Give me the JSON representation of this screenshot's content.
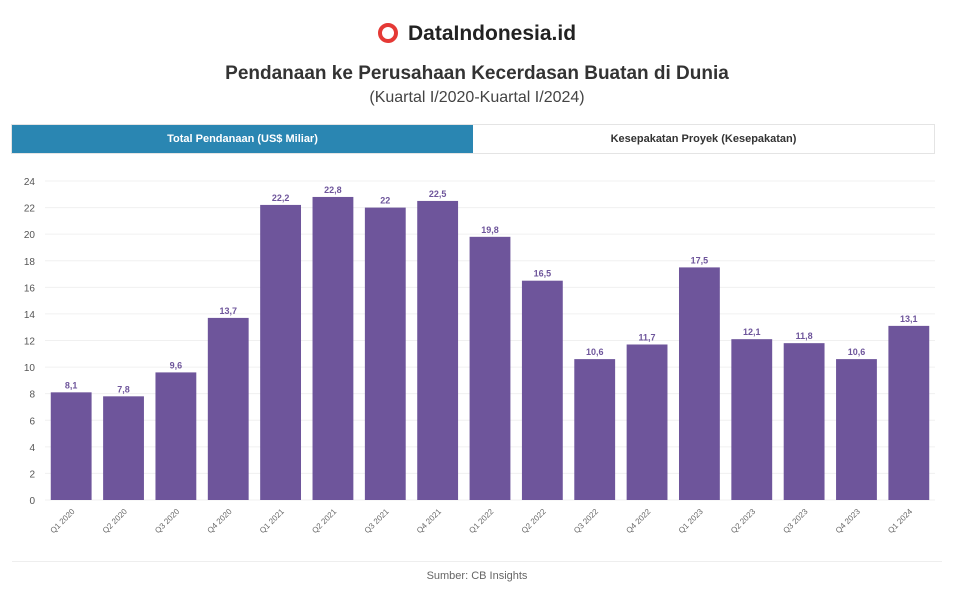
{
  "brand": "DataIndonesia.id",
  "title": "Pendanaan ke Perusahaan Kecerdasan Buatan di Dunia",
  "subtitle": "(Kuartal I/2020-Kuartal I/2024)",
  "tabs": [
    "Total Pendanaan (US$ Miliar)",
    "Kesepakatan Proyek (Kesepakatan)"
  ],
  "source": "Sumber: CB Insights",
  "colors": {
    "bar": "#6e559b",
    "tab_active": "#2a86b2"
  },
  "chart_data": {
    "type": "bar",
    "title": "Pendanaan ke Perusahaan Kecerdasan Buatan di Dunia",
    "categories": [
      "Q1 2020",
      "Q2 2020",
      "Q3 2020",
      "Q4 2020",
      "Q1 2021",
      "Q2 2021",
      "Q3 2021",
      "Q4 2021",
      "Q1 2022",
      "Q2 2022",
      "Q3 2022",
      "Q4 2022",
      "Q1 2023",
      "Q2 2023",
      "Q3 2023",
      "Q4 2023",
      "Q1 2024"
    ],
    "values": [
      8.1,
      7.8,
      9.6,
      13.7,
      22.2,
      22.8,
      22,
      22.5,
      19.8,
      16.5,
      10.6,
      11.7,
      17.5,
      12.1,
      11.8,
      10.6,
      13.1
    ],
    "labels": [
      "8,1",
      "7,8",
      "9,6",
      "13,7",
      "22,2",
      "22,8",
      "22",
      "22,5",
      "19,8",
      "16,5",
      "10,6",
      "11,7",
      "17,5",
      "12,1",
      "11,8",
      "10,6",
      "13,1"
    ],
    "yticks": [
      0,
      2,
      4,
      6,
      8,
      10,
      12,
      14,
      16,
      18,
      20,
      22,
      24
    ],
    "ylim": [
      0,
      24
    ],
    "grid": true,
    "xlabel": "",
    "ylabel": ""
  }
}
